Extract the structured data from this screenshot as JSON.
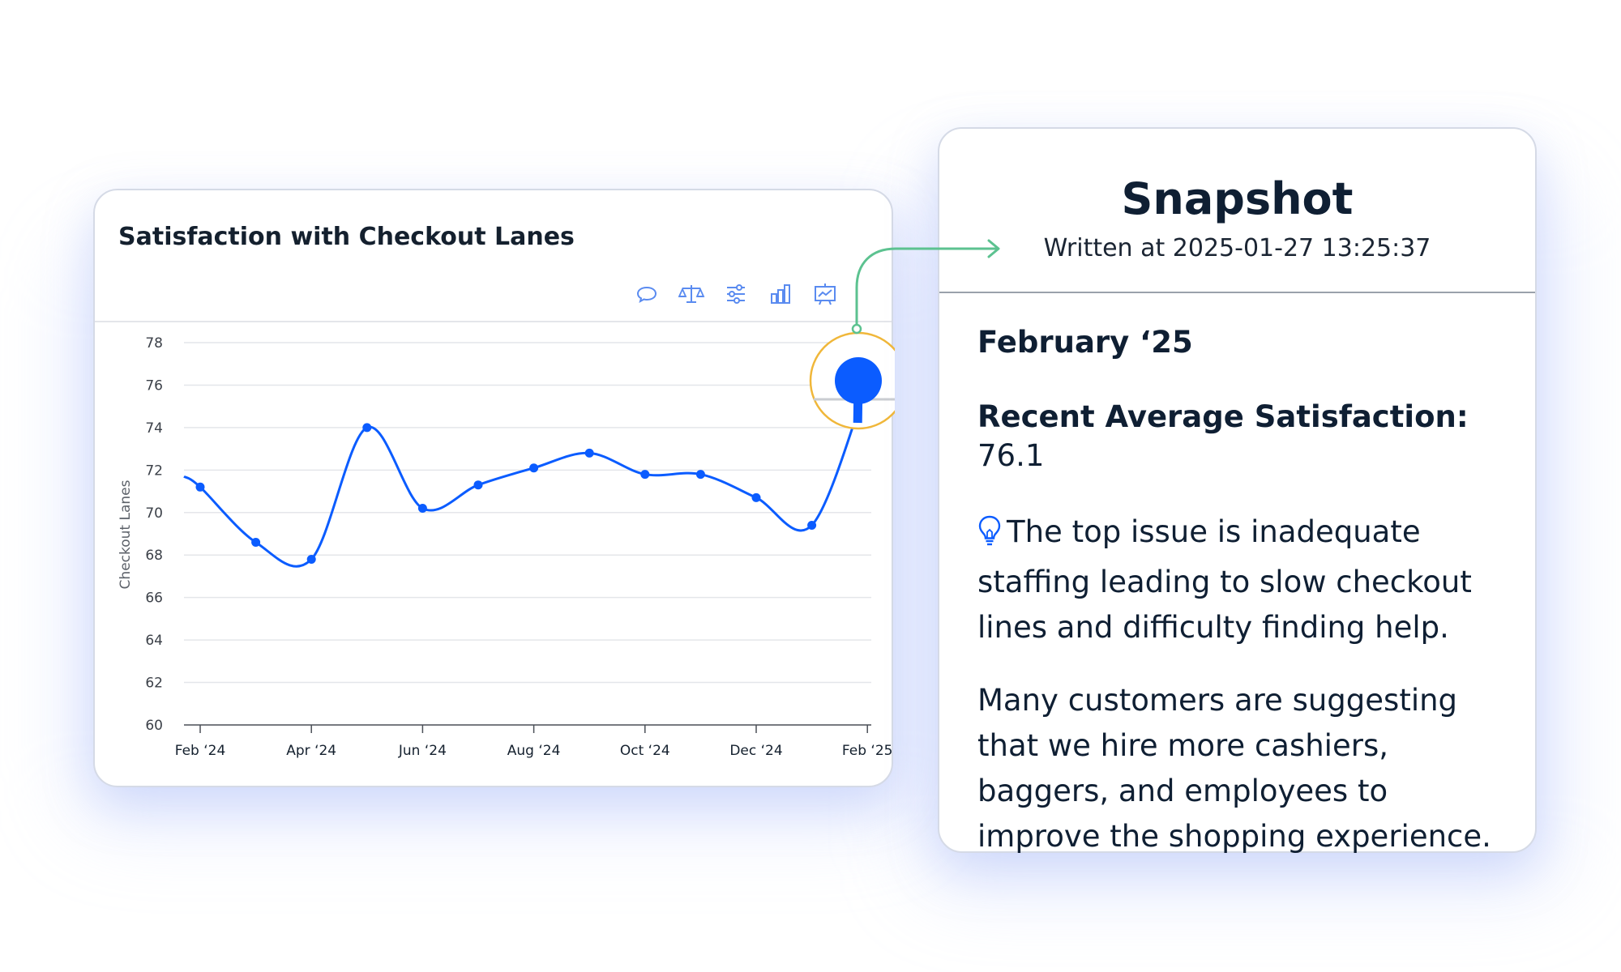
{
  "chart_card": {
    "title": "Satisfaction with Checkout Lanes",
    "toolbar_icons": [
      "comment-icon",
      "balance-scale-icon",
      "sliders-icon",
      "bar-chart-icon",
      "presentation-chart-icon"
    ]
  },
  "chart_data": {
    "type": "line",
    "title": "Satisfaction with Checkout Lanes",
    "ylabel": "Checkout Lanes",
    "xlabel": "",
    "ylim": [
      60,
      78
    ],
    "y_ticks": [
      "60",
      "62",
      "64",
      "66",
      "68",
      "70",
      "72",
      "74",
      "76",
      "78"
    ],
    "x_ticks": [
      "Feb ‘24",
      "Apr ‘24",
      "Jun ‘24",
      "Aug ‘24",
      "Oct ‘24",
      "Dec ‘24",
      "Feb ‘25"
    ],
    "grid": true,
    "series": [
      {
        "color": "#0b5cff",
        "x": [
          "Feb ‘24",
          "Mar ‘24",
          "Apr ‘24",
          "May ‘24",
          "Jun ‘24",
          "Jul ‘24",
          "Aug ‘24",
          "Sep ‘24",
          "Oct ‘24",
          "Nov ‘24",
          "Dec ‘24",
          "Jan ‘25",
          "Feb ‘25"
        ],
        "values": [
          71.2,
          68.6,
          67.8,
          74.0,
          70.2,
          71.3,
          72.1,
          72.8,
          71.8,
          71.8,
          70.7,
          69.4,
          76.1
        ]
      }
    ],
    "highlight": {
      "x": "Feb ‘25",
      "value": 76.1
    }
  },
  "snapshot": {
    "title": "Snapshot",
    "written_at": "Written at 2025-01-27 13:25:37",
    "month": "February ‘25",
    "avg_label": "Recent Average Satisfaction:",
    "avg_value": "76.1",
    "insight": "The top issue is inadequate staffing leading to slow checkout lines and difficulty finding help.",
    "suggestion": "Many customers are suggesting that we hire more cashiers, baggers, and employees to improve the shopping experience."
  },
  "colors": {
    "line": "#0b5cff",
    "highlight_ring": "#f0b73a",
    "connector": "#5cc290",
    "grid": "#e4e6ea"
  }
}
